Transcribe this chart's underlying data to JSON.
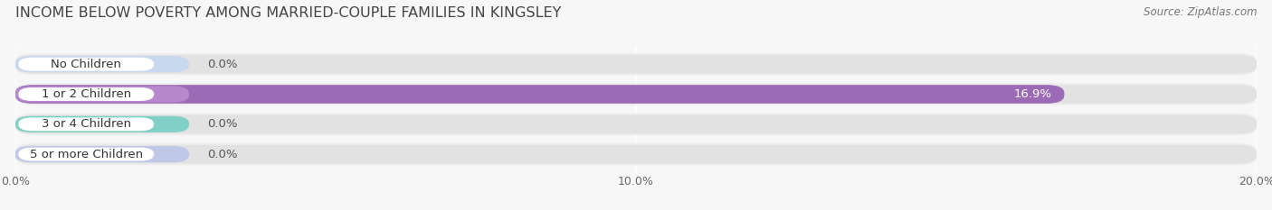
{
  "title": "INCOME BELOW POVERTY AMONG MARRIED-COUPLE FAMILIES IN KINGSLEY",
  "source": "Source: ZipAtlas.com",
  "categories": [
    "No Children",
    "1 or 2 Children",
    "3 or 4 Children",
    "5 or more Children"
  ],
  "values": [
    0.0,
    16.9,
    0.0,
    0.0
  ],
  "bar_colors": [
    "#a8bcd8",
    "#9b6bb5",
    "#5bbcb0",
    "#a8b0d8"
  ],
  "label_pill_colors": [
    "#c8d8ee",
    "#b888cc",
    "#80d0c8",
    "#c0c8e8"
  ],
  "row_bg_color": "#eeeeee",
  "bar_bg_color": "#e2e2e2",
  "xlim": [
    0,
    20.0
  ],
  "xticks": [
    0.0,
    10.0,
    20.0
  ],
  "xtick_labels": [
    "0.0%",
    "10.0%",
    "20.0%"
  ],
  "background_color": "#f7f7f7",
  "title_fontsize": 11.5,
  "label_fontsize": 9.5,
  "value_fontsize": 9.5,
  "source_fontsize": 8.5
}
